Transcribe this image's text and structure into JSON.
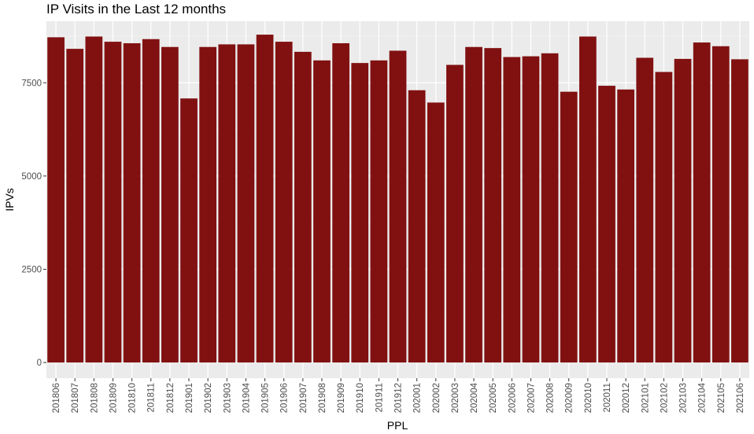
{
  "chart_data": {
    "type": "bar",
    "title": "IP Visits in the Last 12 months",
    "xlabel": "PPL",
    "ylabel": "IPVs",
    "categories": [
      "201806",
      "201807",
      "201808",
      "201809",
      "201810",
      "201811",
      "201812",
      "201901",
      "201902",
      "201903",
      "201904",
      "201905",
      "201906",
      "201907",
      "201908",
      "201909",
      "201910",
      "201911",
      "201912",
      "202001",
      "202002",
      "202003",
      "202004",
      "202005",
      "202006",
      "202007",
      "202008",
      "202009",
      "202010",
      "202011",
      "202012",
      "202101",
      "202102",
      "202103",
      "202104",
      "202105",
      "202106"
    ],
    "values": [
      8720,
      8410,
      8740,
      8600,
      8560,
      8670,
      8460,
      7080,
      8460,
      8530,
      8530,
      8790,
      8600,
      8330,
      8100,
      8560,
      8030,
      8100,
      8360,
      7300,
      6970,
      7980,
      8460,
      8430,
      8190,
      8210,
      8290,
      7260,
      8740,
      7420,
      7320,
      8170,
      7790,
      8140,
      8580,
      8480,
      8130
    ],
    "ylim": [
      -420,
      9150
    ],
    "yticks": [
      0,
      2500,
      5000,
      7500
    ],
    "grid": true,
    "legend": "none",
    "colors": {
      "bar": "#811111",
      "panel": "#ebebeb",
      "grid_major": "#ffffff",
      "grid_minor": "#f5f5f5",
      "tick_text": "#4d4d4d",
      "tick_mark": "#333333"
    }
  }
}
